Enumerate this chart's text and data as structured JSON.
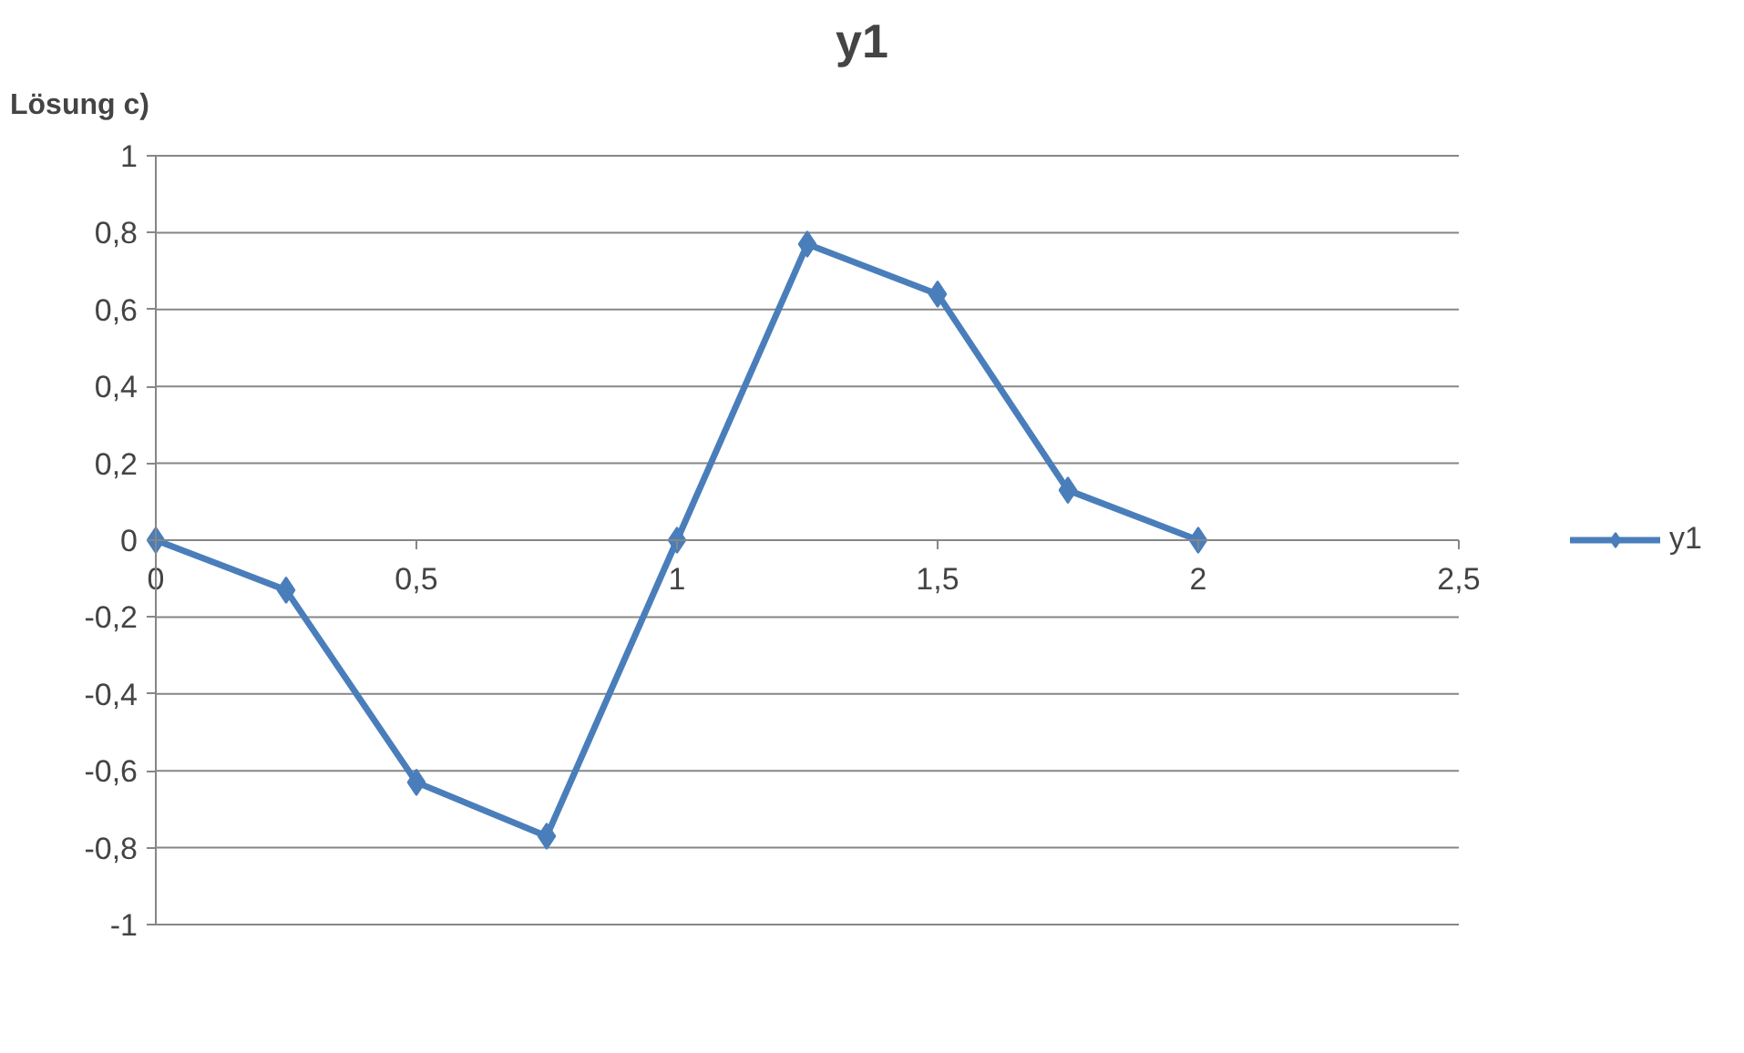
{
  "chart_data": {
    "type": "line",
    "title": "y1",
    "annotations": [
      "Lösung c)"
    ],
    "x": [
      0,
      0.25,
      0.5,
      0.75,
      1,
      1.25,
      1.5,
      1.75,
      2
    ],
    "series": [
      {
        "name": "y1",
        "color": "#4a7ebb",
        "values": [
          0,
          -0.13,
          -0.63,
          -0.77,
          0,
          0.77,
          0.64,
          0.13,
          0
        ]
      }
    ],
    "xlim": [
      0,
      2.5
    ],
    "xticks": [
      {
        "value": 0,
        "label": "0"
      },
      {
        "value": 0.5,
        "label": "0,5"
      },
      {
        "value": 1,
        "label": "1"
      },
      {
        "value": 1.5,
        "label": "1,5"
      },
      {
        "value": 2,
        "label": "2"
      },
      {
        "value": 2.5,
        "label": "2,5"
      }
    ],
    "ylim": [
      -1,
      1
    ],
    "yticks": [
      {
        "value": -1,
        "label": "-1"
      },
      {
        "value": -0.8,
        "label": "-0,8"
      },
      {
        "value": -0.6,
        "label": "-0,6"
      },
      {
        "value": -0.4,
        "label": "-0,4"
      },
      {
        "value": -0.2,
        "label": "-0,2"
      },
      {
        "value": 0,
        "label": "0"
      },
      {
        "value": 0.2,
        "label": "0,2"
      },
      {
        "value": 0.4,
        "label": "0,4"
      },
      {
        "value": 0.6,
        "label": "0,6"
      },
      {
        "value": 0.8,
        "label": "0,8"
      },
      {
        "value": 1,
        "label": "1"
      }
    ],
    "grid": "y",
    "legend": "right",
    "marker": "diamond",
    "line_style": "solid"
  }
}
